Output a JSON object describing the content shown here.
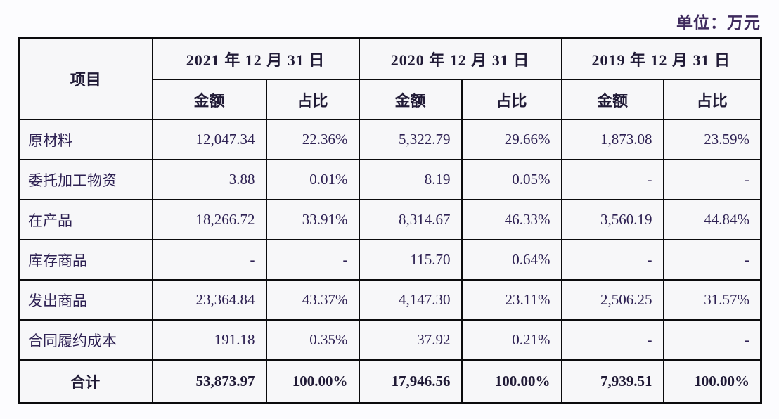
{
  "unit_label": "单位：万元",
  "table": {
    "item_header": "项目",
    "year_headers": [
      "2021 年 12 月 31 日",
      "2020 年 12 月 31 日",
      "2019 年 12 月 31 日"
    ],
    "sub_headers": {
      "amount": "金额",
      "ratio": "占比"
    },
    "rows": [
      {
        "item": "原材料",
        "values": [
          "12,047.34",
          "22.36%",
          "5,322.79",
          "29.66%",
          "1,873.08",
          "23.59%"
        ]
      },
      {
        "item": "委托加工物资",
        "values": [
          "3.88",
          "0.01%",
          "8.19",
          "0.05%",
          "-",
          "-"
        ]
      },
      {
        "item": "在产品",
        "values": [
          "18,266.72",
          "33.91%",
          "8,314.67",
          "46.33%",
          "3,560.19",
          "44.84%"
        ]
      },
      {
        "item": "库存商品",
        "values": [
          "-",
          "-",
          "115.70",
          "0.64%",
          "-",
          "-"
        ]
      },
      {
        "item": "发出商品",
        "values": [
          "23,364.84",
          "43.37%",
          "4,147.30",
          "23.11%",
          "2,506.25",
          "31.57%"
        ]
      },
      {
        "item": "合同履约成本",
        "values": [
          "191.18",
          "0.35%",
          "37.92",
          "0.21%",
          "-",
          "-"
        ]
      }
    ],
    "total_row": {
      "item": "合计",
      "values": [
        "53,873.97",
        "100.00%",
        "17,946.56",
        "100.00%",
        "7,939.51",
        "100.00%"
      ]
    }
  },
  "colors": {
    "page_bg": "#fcfcfe",
    "cell_bg": "#f7f7f9",
    "border": "#0b0b0d",
    "header_text": "#201a36",
    "data_text": "#2e2153",
    "unit_text": "#3f2a5e"
  }
}
